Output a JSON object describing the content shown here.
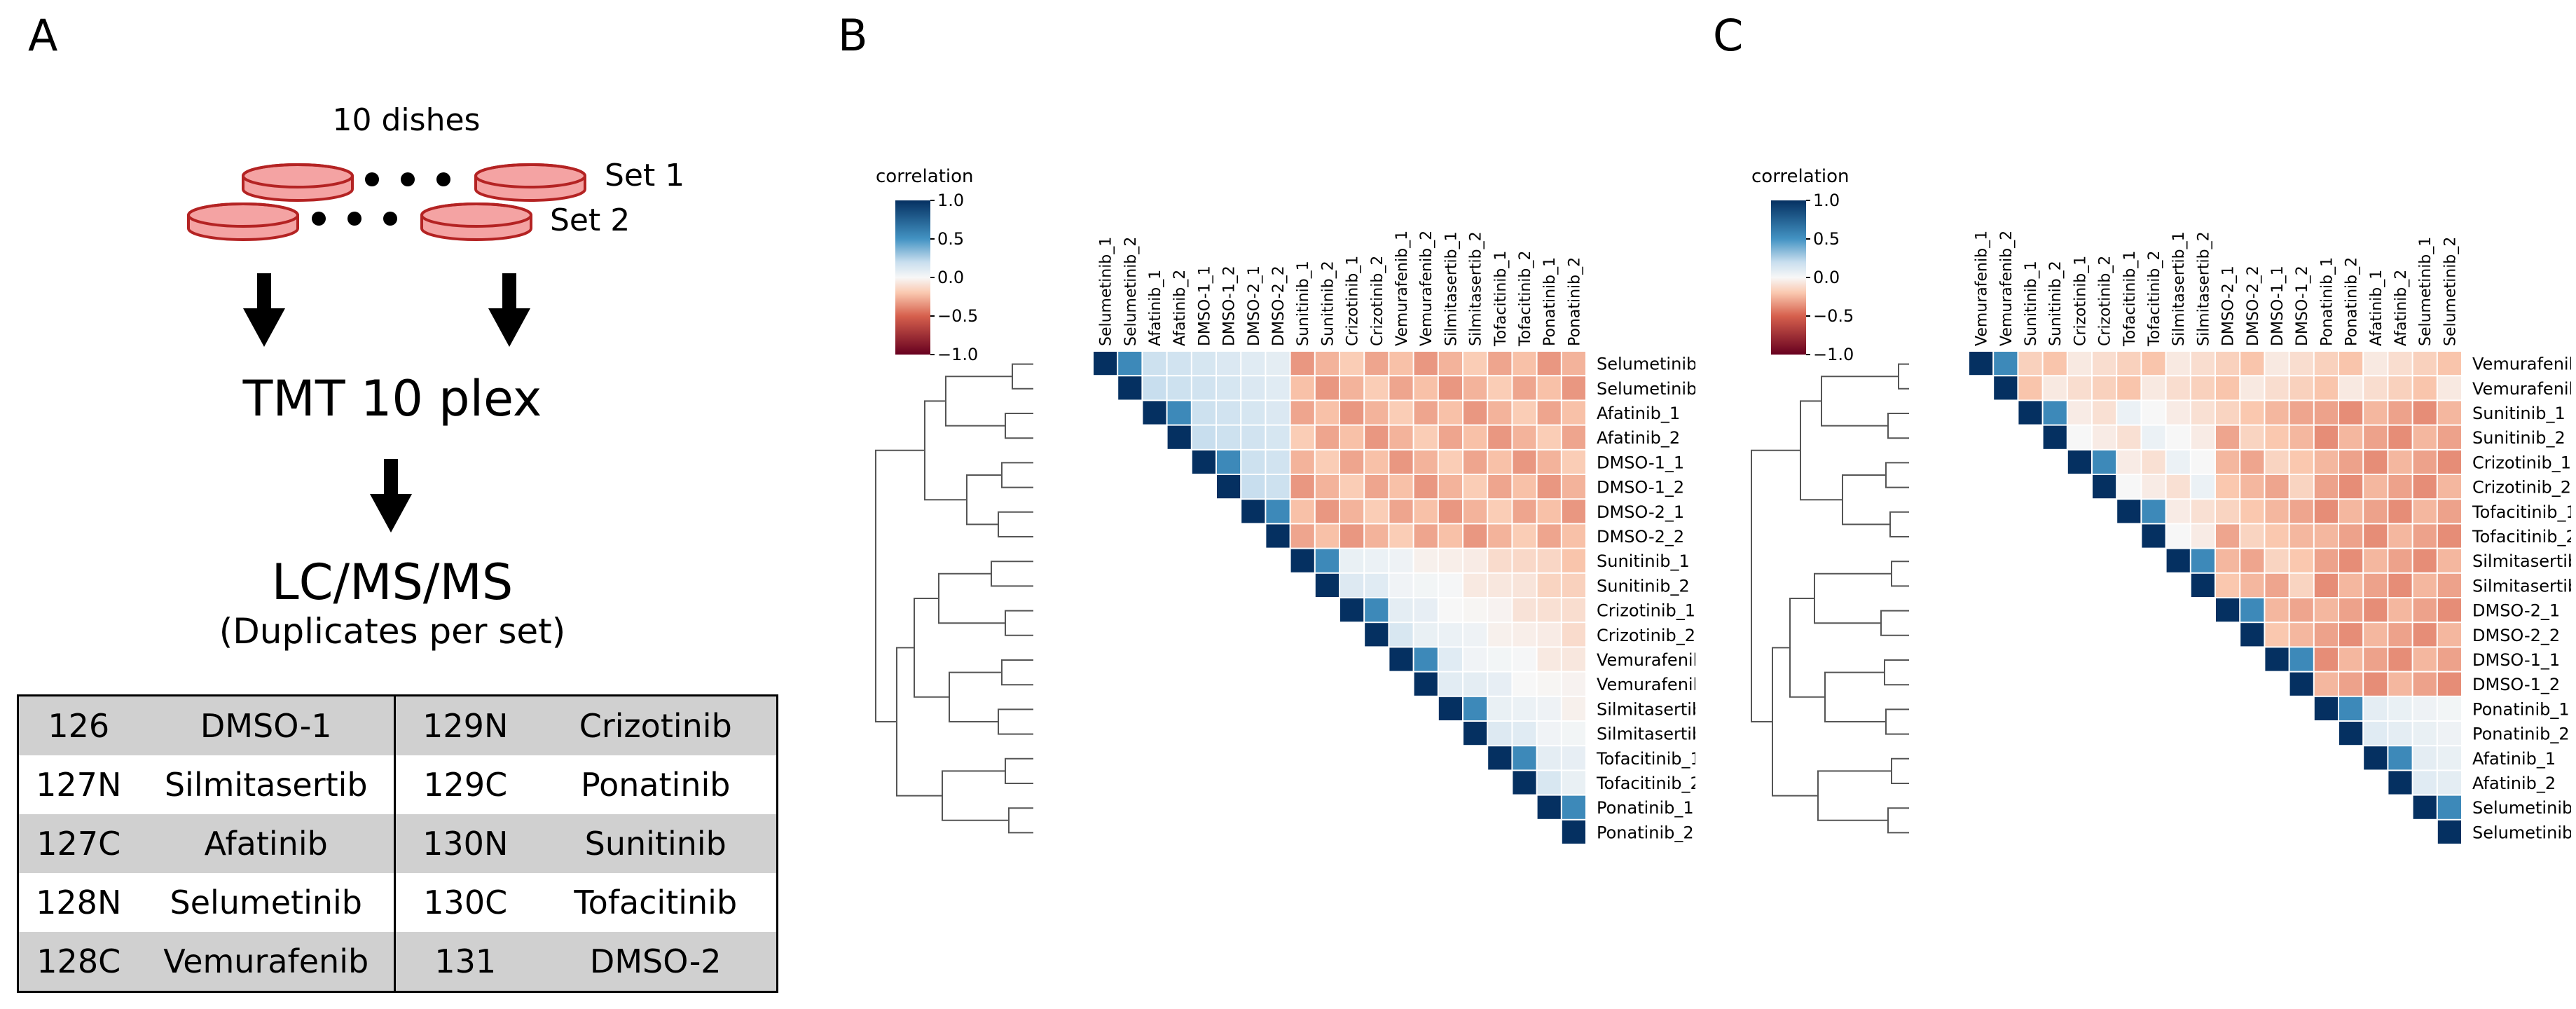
{
  "panel_a": {
    "letter": "A",
    "dishes_label": "10 dishes",
    "set1_label": "Set 1",
    "set2_label": "Set 2",
    "tmt_label": "TMT 10 plex",
    "lcms_label": "LC/MS/MS",
    "duplicates_label": "(Duplicates per set)",
    "colors": {
      "dish_fill": "#f4a3a3",
      "dish_stroke": "#b42323"
    },
    "table": [
      [
        "126",
        "DMSO-1",
        "129N",
        "Crizotinib"
      ],
      [
        "127N",
        "Silmitasertib",
        "129C",
        "Ponatinib"
      ],
      [
        "127C",
        "Afatinib",
        "130N",
        "Sunitinib"
      ],
      [
        "128N",
        "Selumetinib",
        "130C",
        "Tofacitinib"
      ],
      [
        "128C",
        "Vemurafenib",
        "131",
        "DMSO-2"
      ]
    ]
  },
  "panel_b": {
    "letter": "B",
    "colorbar_title": "correlation",
    "colorbar_ticks": [
      "1.0",
      "0.5",
      "0.0",
      "−0.5",
      "−1.0"
    ],
    "labels": [
      "Selumetinib_1",
      "Selumetinib_2",
      "Afatinib_1",
      "Afatinib_2",
      "DMSO-1_1",
      "DMSO-1_2",
      "DMSO-2_1",
      "DMSO-2_2",
      "Sunitinib_1",
      "Sunitinib_2",
      "Crizotinib_1",
      "Crizotinib_2",
      "Vemurafenib_1",
      "Vemurafenib_2",
      "Silmitasertib_1",
      "Silmitasertib_2",
      "Tofacitinib_1",
      "Tofacitinib_2",
      "Ponatinib_1",
      "Ponatinib_2"
    ]
  },
  "panel_c": {
    "letter": "C",
    "colorbar_title": "correlation",
    "colorbar_ticks": [
      "1.0",
      "0.5",
      "0.0",
      "−0.5",
      "−1.0"
    ],
    "labels": [
      "Vemurafenib_1",
      "Vemurafenib_2",
      "Sunitinib_1",
      "Sunitinib_2",
      "Crizotinib_1",
      "Crizotinib_2",
      "Tofacitinib_1",
      "Tofacitinib_2",
      "Silmitasertib_1",
      "Silmitasertib_2",
      "DMSO-2_1",
      "DMSO-2_2",
      "DMSO-1_1",
      "DMSO-1_2",
      "Ponatinib_1",
      "Ponatinib_2",
      "Afatinib_1",
      "Afatinib_2",
      "Selumetinib_1",
      "Selumetinib_2"
    ]
  }
}
